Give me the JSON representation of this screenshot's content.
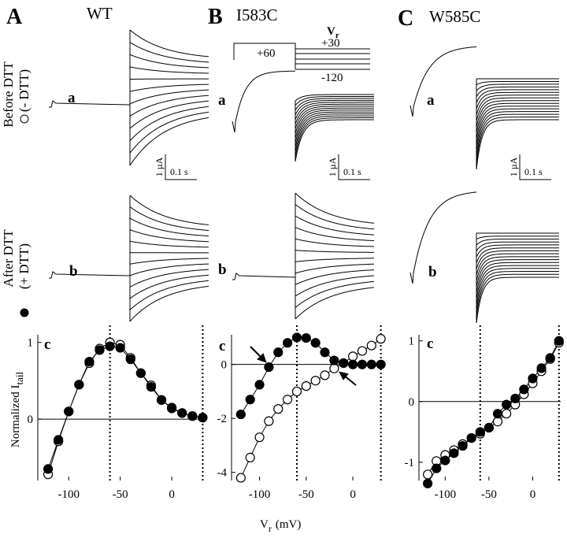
{
  "panels": [
    {
      "letter": "A",
      "title": "WT"
    },
    {
      "letter": "B",
      "title": "I583C"
    },
    {
      "letter": "C",
      "title": "W585C"
    }
  ],
  "row_labels": {
    "before": "Before DTT",
    "before_marker": "(- DTT)",
    "after": "After DTT",
    "after_marker": "(+ DTT)"
  },
  "trace_labels": {
    "a": "a",
    "b": "b",
    "c": "c"
  },
  "scale_bar": {
    "current": "1 µA",
    "time": "0.1 s"
  },
  "protocol": {
    "prepulse": "+60",
    "v": "V",
    "v_sub": "r",
    "high": "+30",
    "low": "-120"
  },
  "y_label": {
    "text": "Normalized I",
    "sub": "tail"
  },
  "x_label": {
    "text": "V",
    "sub": "r",
    "unit": "(mV)"
  },
  "chart_data": [
    {
      "type": "line",
      "x": [
        -120,
        -110,
        -100,
        -90,
        -80,
        -70,
        -60,
        -50,
        -40,
        -30,
        -20,
        -10,
        0,
        10,
        20,
        30
      ],
      "xlim": [
        -130,
        32
      ],
      "xticks": [
        -100,
        -50,
        0
      ],
      "ylim": [
        -0.8,
        1.1
      ],
      "yticks": [
        0,
        1
      ],
      "ref_lines": [
        -60,
        30
      ],
      "series": [
        {
          "marker": "open",
          "color": "#000000",
          "values": [
            -0.72,
            -0.29,
            0.1,
            0.45,
            0.73,
            0.92,
            1.0,
            0.97,
            0.8,
            0.6,
            0.44,
            0.25,
            0.15,
            0.08,
            0.04,
            0.02
          ]
        },
        {
          "marker": "filled",
          "color": "#000000",
          "values": [
            -0.65,
            -0.27,
            0.1,
            0.45,
            0.75,
            0.9,
            0.95,
            0.93,
            0.78,
            0.6,
            0.42,
            0.25,
            0.14,
            0.08,
            0.04,
            0.02
          ]
        }
      ]
    },
    {
      "type": "line",
      "x": [
        -120,
        -110,
        -100,
        -90,
        -80,
        -70,
        -60,
        -50,
        -40,
        -30,
        -20,
        -10,
        0,
        10,
        20,
        30
      ],
      "xlim": [
        -130,
        32
      ],
      "xticks": [
        -100,
        -50,
        0
      ],
      "ylim": [
        -4.3,
        1.1
      ],
      "yticks": [
        -4,
        -2,
        0
      ],
      "ref_lines": [
        -60,
        30
      ],
      "series": [
        {
          "marker": "open",
          "color": "#000000",
          "values": [
            -4.2,
            -3.45,
            -2.7,
            -2.1,
            -1.65,
            -1.3,
            -1.0,
            -0.8,
            -0.6,
            -0.4,
            -0.15,
            0.05,
            0.3,
            0.5,
            0.7,
            0.95
          ]
        },
        {
          "marker": "filled",
          "color": "#000000",
          "values": [
            -1.85,
            -1.3,
            -0.75,
            -0.1,
            0.45,
            0.8,
            1.0,
            0.98,
            0.8,
            0.45,
            0.15,
            0.05,
            0.0,
            0.0,
            0.0,
            0.0
          ]
        }
      ]
    },
    {
      "type": "line",
      "x": [
        -120,
        -110,
        -100,
        -90,
        -80,
        -70,
        -60,
        -50,
        -40,
        -30,
        -20,
        -10,
        0,
        10,
        20,
        30
      ],
      "xlim": [
        -130,
        32
      ],
      "xticks": [
        -100,
        -50,
        0
      ],
      "ylim": [
        -1.3,
        1.1
      ],
      "yticks": [
        -1,
        0,
        1
      ],
      "ref_lines": [
        -60,
        30
      ],
      "series": [
        {
          "marker": "open",
          "color": "#000000",
          "values": [
            -1.2,
            -0.98,
            -0.88,
            -0.8,
            -0.7,
            -0.6,
            -0.53,
            -0.43,
            -0.33,
            -0.2,
            -0.05,
            0.12,
            0.3,
            0.5,
            0.7,
            0.97
          ]
        },
        {
          "marker": "filled",
          "color": "#000000",
          "values": [
            -1.35,
            -1.1,
            -0.97,
            -0.85,
            -0.73,
            -0.6,
            -0.5,
            -0.43,
            -0.2,
            -0.05,
            0.05,
            0.2,
            0.38,
            0.55,
            0.72,
            1.0
          ]
        }
      ]
    }
  ]
}
